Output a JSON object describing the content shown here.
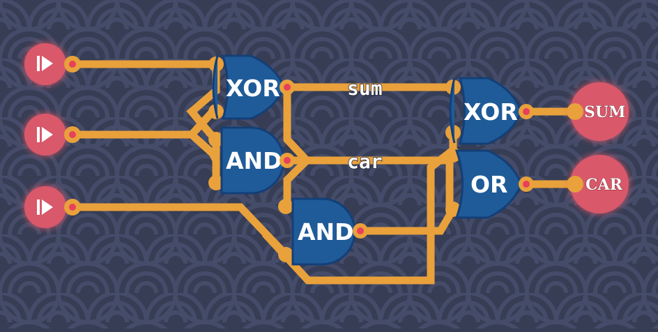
{
  "colors": {
    "background": "#363d54",
    "wave": "#4a5270",
    "wire": "#e9a13b",
    "gate": "#1f5b98",
    "io": "#d9586a",
    "pin_dot": "#e8405a"
  },
  "icons": {
    "input_toggle": "play-bar-icon"
  },
  "inputs": [
    {
      "icon": "play-bar-icon"
    },
    {
      "icon": "play-bar-icon"
    },
    {
      "icon": "play-bar-icon"
    }
  ],
  "gates": {
    "xor1": "XOR",
    "and1": "AND",
    "and2": "AND",
    "xor2": "XOR",
    "or1": "OR"
  },
  "wire_labels": {
    "sum": "sum",
    "car": "car"
  },
  "outputs": {
    "sum": "SUM",
    "car": "CAR"
  }
}
